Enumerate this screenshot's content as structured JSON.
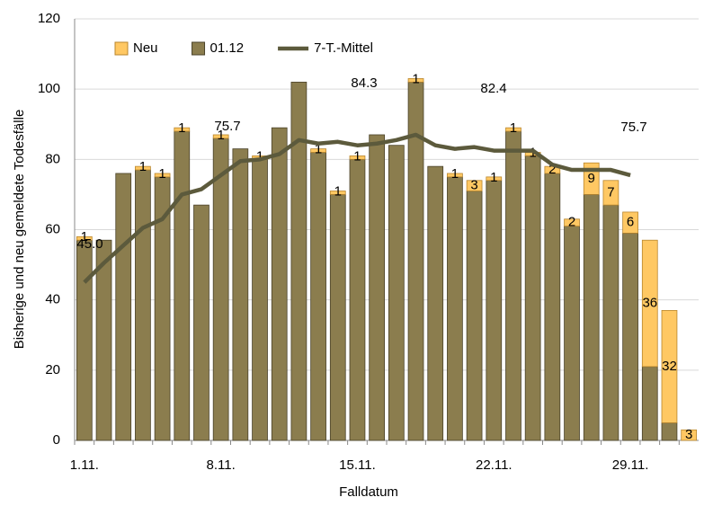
{
  "chart_data": {
    "type": "stacked-bar-line",
    "x_label": "Falldatum",
    "y_label": "Bisherige und neu gemeldete Todesfälle",
    "categories": [
      "1.11.",
      null,
      null,
      null,
      null,
      null,
      null,
      "8.11.",
      null,
      null,
      null,
      null,
      null,
      null,
      "15.11.",
      null,
      null,
      null,
      null,
      null,
      null,
      "22.11.",
      null,
      null,
      null,
      null,
      null,
      null,
      "29.11.",
      null,
      null,
      null
    ],
    "series": [
      {
        "name": "Neu",
        "color": "#ffc863",
        "kind": "bar",
        "values": [
          1,
          0,
          0,
          1,
          1,
          1,
          0,
          1,
          0,
          1,
          0,
          0,
          1,
          1,
          1,
          0,
          0,
          1,
          0,
          1,
          3,
          1,
          1,
          1,
          2,
          2,
          9,
          7,
          6,
          36,
          32,
          3
        ]
      },
      {
        "name": "01.12",
        "color": "#8b7d4e",
        "kind": "bar",
        "values": [
          57,
          57,
          76,
          77,
          75,
          88,
          67,
          86,
          83,
          80,
          89,
          102,
          82,
          70,
          80,
          87,
          84,
          102,
          78,
          75,
          71,
          74,
          88,
          81,
          76,
          61,
          70,
          67,
          59,
          21,
          5,
          0
        ]
      },
      {
        "name": "7-T.-Mittel",
        "color": "#5c5a3c",
        "kind": "line",
        "values": [
          45,
          50.5,
          55.5,
          60.5,
          63,
          70,
          71.5,
          75.5,
          79.5,
          80,
          81.5,
          85.5,
          84.5,
          85,
          84,
          84.5,
          85.5,
          87,
          84,
          83,
          83.5,
          82.5,
          82.5,
          82.5,
          78.5,
          77,
          77,
          77,
          75.5,
          null,
          null,
          null
        ]
      }
    ],
    "annotations": [
      "45.0",
      "75.7",
      "84.3",
      "82.4",
      "75.7"
    ],
    "ylim": [
      0,
      120
    ],
    "yticks": [
      0,
      20,
      40,
      60,
      80,
      100,
      120
    ],
    "grid": true
  }
}
